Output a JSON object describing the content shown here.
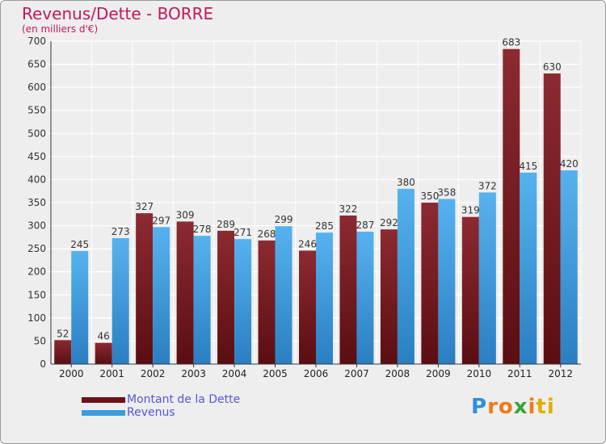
{
  "header": {
    "title": "Revenus/Dette - BORRE",
    "subtitle": "(en milliers d'€)"
  },
  "chart_data": {
    "type": "bar",
    "title": "Revenus/Dette - BORRE",
    "subtitle": "(en milliers d'€)",
    "categories": [
      "2000",
      "2001",
      "2002",
      "2003",
      "2004",
      "2005",
      "2006",
      "2007",
      "2008",
      "2009",
      "2010",
      "2011",
      "2012"
    ],
    "series": [
      {
        "name": "Montant de la Dette",
        "color": "#7a1c22",
        "values": [
          52,
          46,
          327,
          309,
          289,
          268,
          246,
          322,
          292,
          350,
          319,
          683,
          630
        ]
      },
      {
        "name": "Revenus",
        "color": "#3a9ce0",
        "values": [
          245,
          273,
          297,
          278,
          271,
          299,
          285,
          287,
          380,
          358,
          372,
          415,
          420
        ]
      }
    ],
    "ylim": [
      0,
      700
    ],
    "yticks": [
      0,
      50,
      100,
      150,
      200,
      250,
      300,
      350,
      400,
      450,
      500,
      550,
      600,
      650,
      700
    ],
    "grid": true,
    "legend": "bottom-left"
  },
  "legend": {
    "debt_label": "Montant de la Dette",
    "revenue_label": "Revenus"
  },
  "branding": {
    "logo_letters": [
      "P",
      "r",
      "o",
      "x",
      "i",
      "t",
      "i"
    ],
    "logo_colors": [
      "#2f8fd8",
      "#f07a1a",
      "#f07a1a",
      "#3aa53a",
      "#f07a1a",
      "#e0b000",
      "#e0b000"
    ]
  }
}
